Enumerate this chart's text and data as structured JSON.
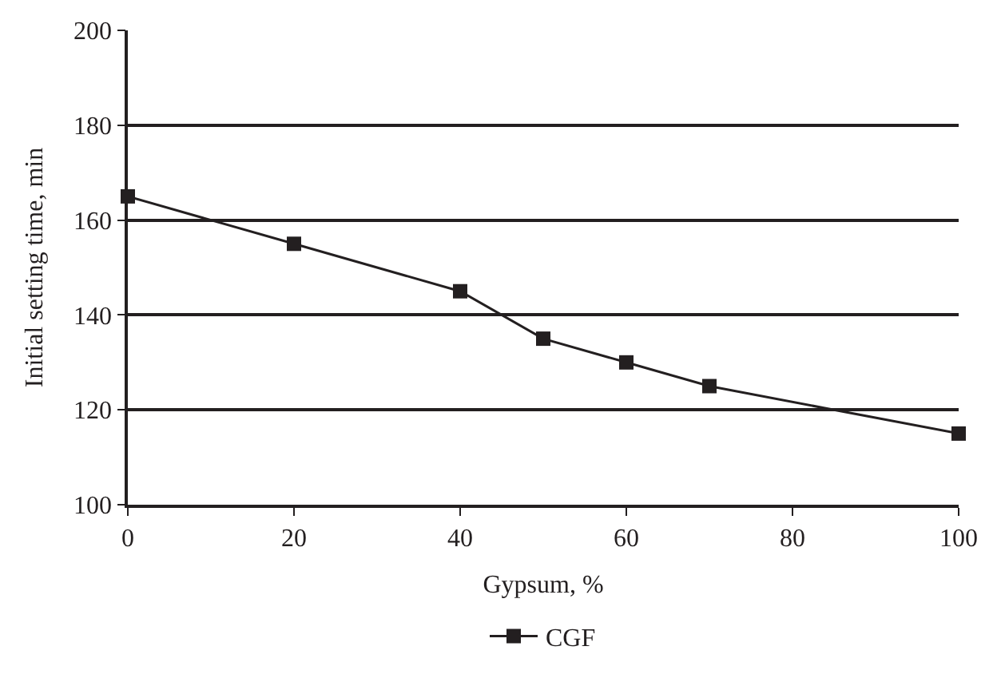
{
  "chart_data": {
    "type": "line",
    "xlabel": "Gypsum, %",
    "ylabel": "Initial setting time, min",
    "x": [
      0,
      20,
      40,
      50,
      60,
      70,
      100
    ],
    "series": [
      {
        "name": "CGF",
        "color": "#231f20",
        "values": [
          165,
          155,
          145,
          135,
          130,
          125,
          115
        ]
      }
    ],
    "xlim": [
      0,
      100
    ],
    "xticks": [
      0,
      20,
      40,
      60,
      80,
      100
    ],
    "ylim": [
      100,
      200
    ],
    "yticks": [
      100,
      120,
      140,
      160,
      180,
      200
    ],
    "grid": "y",
    "legend": "bottom",
    "marker": "square",
    "line_style": "solid"
  }
}
